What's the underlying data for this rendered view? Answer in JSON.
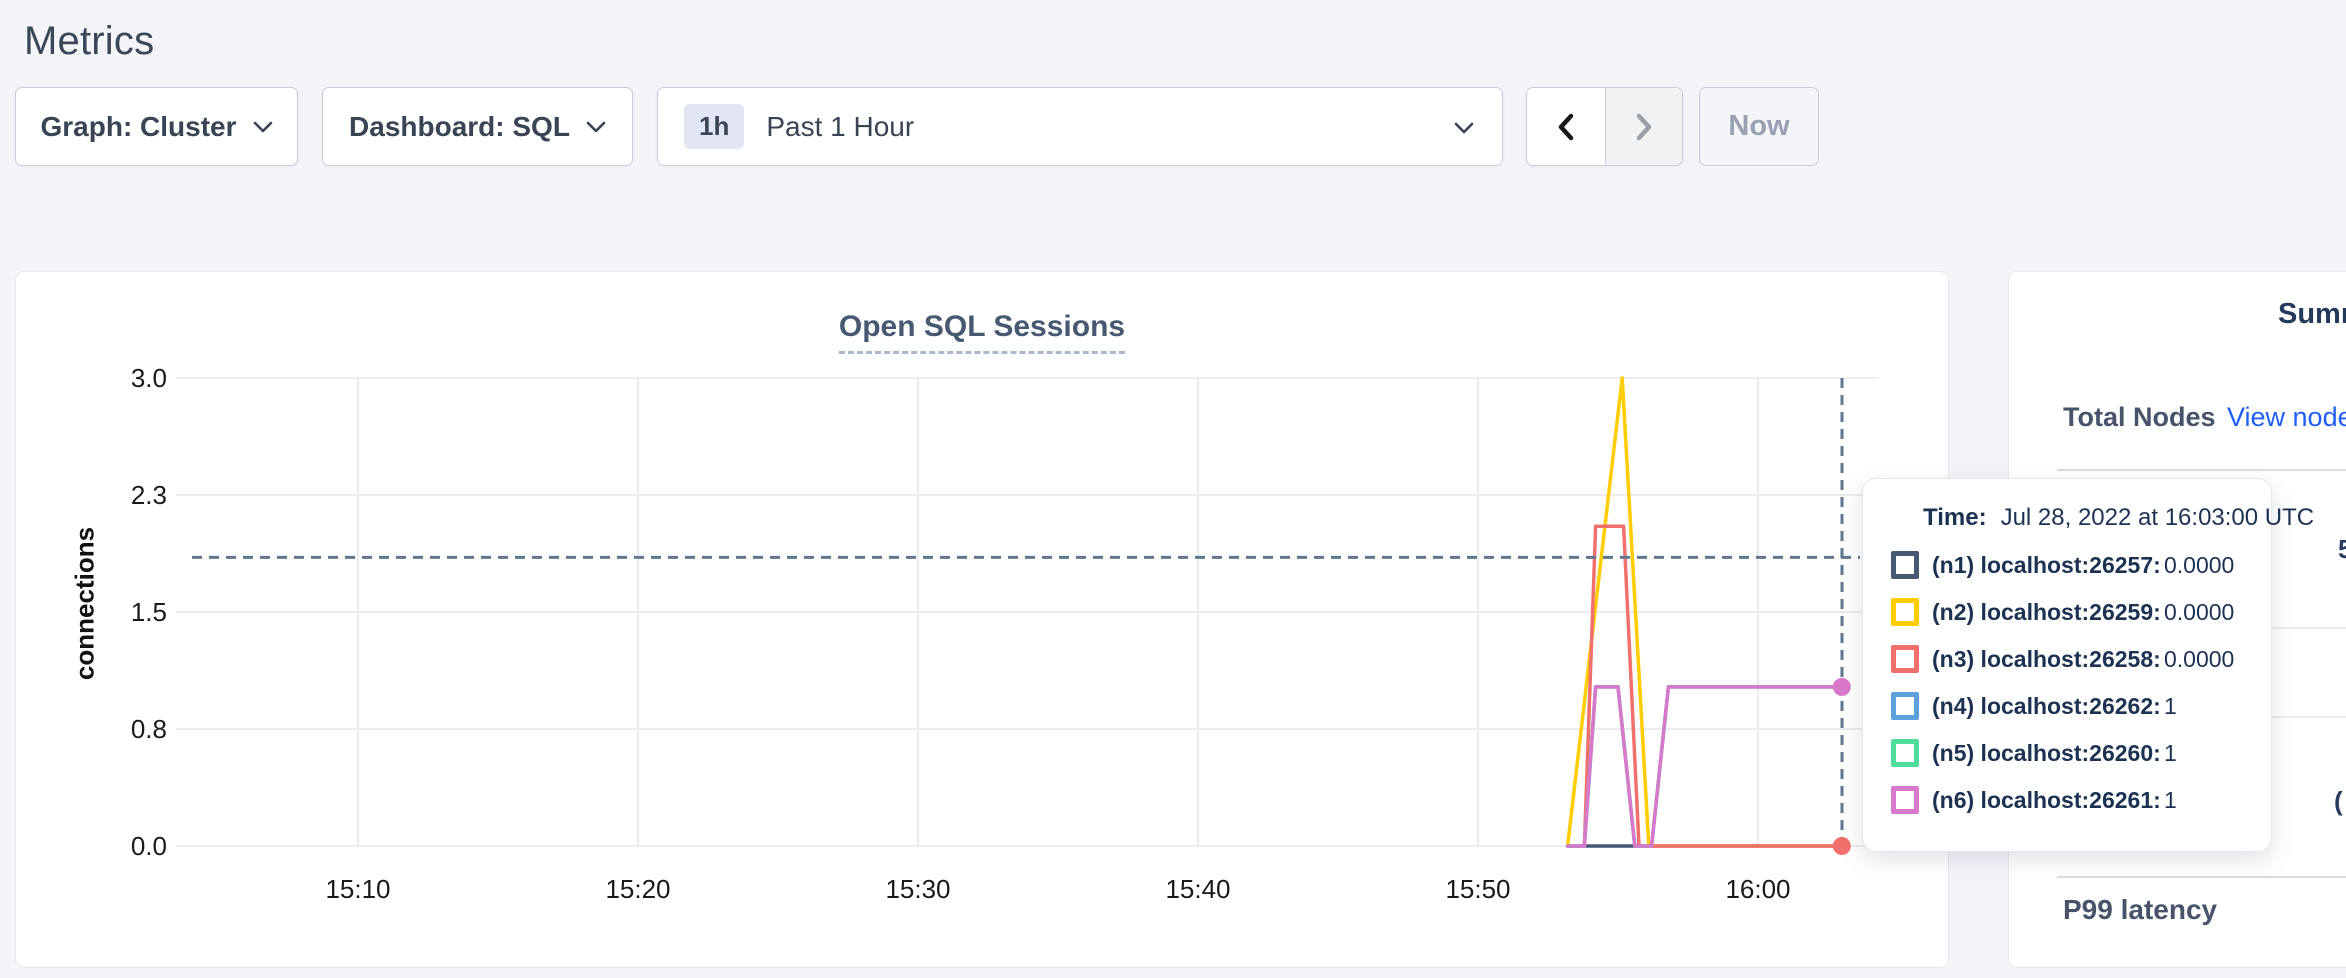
{
  "page": {
    "title": "Metrics",
    "background": "#F4F5F9"
  },
  "toolbar": {
    "graph_dropdown_label": "Graph: Cluster",
    "dashboard_dropdown_label": "Dashboard: SQL",
    "time_window_badge": "1h",
    "time_window_label": "Past 1 Hour",
    "now_button_label": "Now"
  },
  "chart": {
    "title": "Open SQL Sessions",
    "ylabel": "connections"
  },
  "chart_data": {
    "type": "line",
    "title": "Open SQL Sessions",
    "xlabel": "",
    "ylabel": "connections",
    "ylim": [
      0,
      3
    ],
    "x_window": "Past 1 Hour (15:03 - 16:04)",
    "grid": true,
    "legend_position": "tooltip-only",
    "y_ticks": [
      {
        "value": 0,
        "label": "0.0"
      },
      {
        "value": 0.75,
        "label": "0.8"
      },
      {
        "value": 1.5,
        "label": "1.5"
      },
      {
        "value": 2.25,
        "label": "2.3"
      },
      {
        "value": 3,
        "label": "3.0"
      }
    ],
    "x_ticks": [
      {
        "minute": 10,
        "label": "15:10"
      },
      {
        "minute": 20,
        "label": "15:20"
      },
      {
        "minute": 30,
        "label": "15:30"
      },
      {
        "minute": 40,
        "label": "15:40"
      },
      {
        "minute": 50,
        "label": "15:50"
      },
      {
        "minute": 60,
        "label": "16:00"
      }
    ],
    "series": [
      {
        "name": "(n1) localhost:26257",
        "color": "#475872",
        "points": [
          [
            53.2,
            0
          ],
          [
            63.1,
            0
          ]
        ]
      },
      {
        "name": "(n2) localhost:26259",
        "color": "#FFCD02",
        "points": [
          [
            53.2,
            0
          ],
          [
            55.15,
            3
          ],
          [
            56.1,
            0
          ],
          [
            63.1,
            0
          ]
        ]
      },
      {
        "name": "(n3) localhost:26258",
        "color": "#F2706B",
        "points": [
          [
            53.8,
            0
          ],
          [
            54.2,
            2.05
          ],
          [
            55.2,
            2.05
          ],
          [
            55.75,
            0
          ],
          [
            63.1,
            0
          ]
        ]
      },
      {
        "name": "(n4) localhost:26262",
        "color": "#5CA1DB",
        "points": [
          [
            53.2,
            0
          ],
          [
            53.8,
            0
          ],
          [
            54.2,
            1.02
          ],
          [
            55.0,
            1.02
          ],
          [
            55.6,
            0
          ],
          [
            56.2,
            0
          ],
          [
            56.8,
            1.02
          ],
          [
            63.2,
            1.02
          ]
        ]
      },
      {
        "name": "(n5) localhost:26260",
        "color": "#50DC9A",
        "points": [
          [
            53.2,
            0
          ],
          [
            53.8,
            0
          ],
          [
            54.2,
            1.02
          ],
          [
            55.0,
            1.02
          ],
          [
            55.6,
            0
          ],
          [
            56.2,
            0
          ],
          [
            56.8,
            1.02
          ],
          [
            63.2,
            1.02
          ]
        ]
      },
      {
        "name": "(n6) localhost:26261",
        "color": "#D877CC",
        "points": [
          [
            53.2,
            0
          ],
          [
            53.8,
            0
          ],
          [
            54.2,
            1.02
          ],
          [
            55.0,
            1.02
          ],
          [
            55.6,
            0
          ],
          [
            56.2,
            0
          ],
          [
            56.8,
            1.02
          ],
          [
            63.2,
            1.02
          ]
        ]
      }
    ],
    "end_dots": [
      {
        "color": "#D877CC",
        "minute": 63.1,
        "value": 1.02
      },
      {
        "color": "#F2706B",
        "minute": 63.1,
        "value": 0
      }
    ],
    "crosshair": {
      "minute": 63,
      "value_y": 1.85,
      "color": "#5F7890"
    },
    "hover_time": "16:03:00"
  },
  "tooltip": {
    "time_label": "Time:",
    "time_value": "Jul 28, 2022 at 16:03:00 UTC",
    "rows": [
      {
        "color": "#475872",
        "label": "(n1) localhost:26257:",
        "value": "0.0000"
      },
      {
        "color": "#FFCD02",
        "label": "(n2) localhost:26259:",
        "value": "0.0000"
      },
      {
        "color": "#F2706B",
        "label": "(n3) localhost:26258:",
        "value": "0.0000"
      },
      {
        "color": "#5CA1DB",
        "label": "(n4) localhost:26262:",
        "value": "1"
      },
      {
        "color": "#50DC9A",
        "label": "(n5) localhost:26260:",
        "value": "1"
      },
      {
        "color": "#D877CC",
        "label": "(n6) localhost:26261:",
        "value": "1"
      }
    ]
  },
  "sidebar": {
    "heading": "Summary",
    "total_nodes_label": "Total Nodes",
    "view_nodes_link": "View nodes",
    "p99_label": "P99 latency",
    "clipped_fragments": [
      "5",
      "("
    ]
  },
  "colors": {
    "link_blue": "#1F5FF5",
    "heading_navy": "#394455",
    "tooltip_text": "#1C3252",
    "grid": "#ECECEF",
    "crosshair": "#5F7890",
    "page_bg": "#F4F5F9",
    "card_border": "#E6E8EE",
    "control_border": "#C9CEDE",
    "disabled_text": "#97A1B3"
  }
}
